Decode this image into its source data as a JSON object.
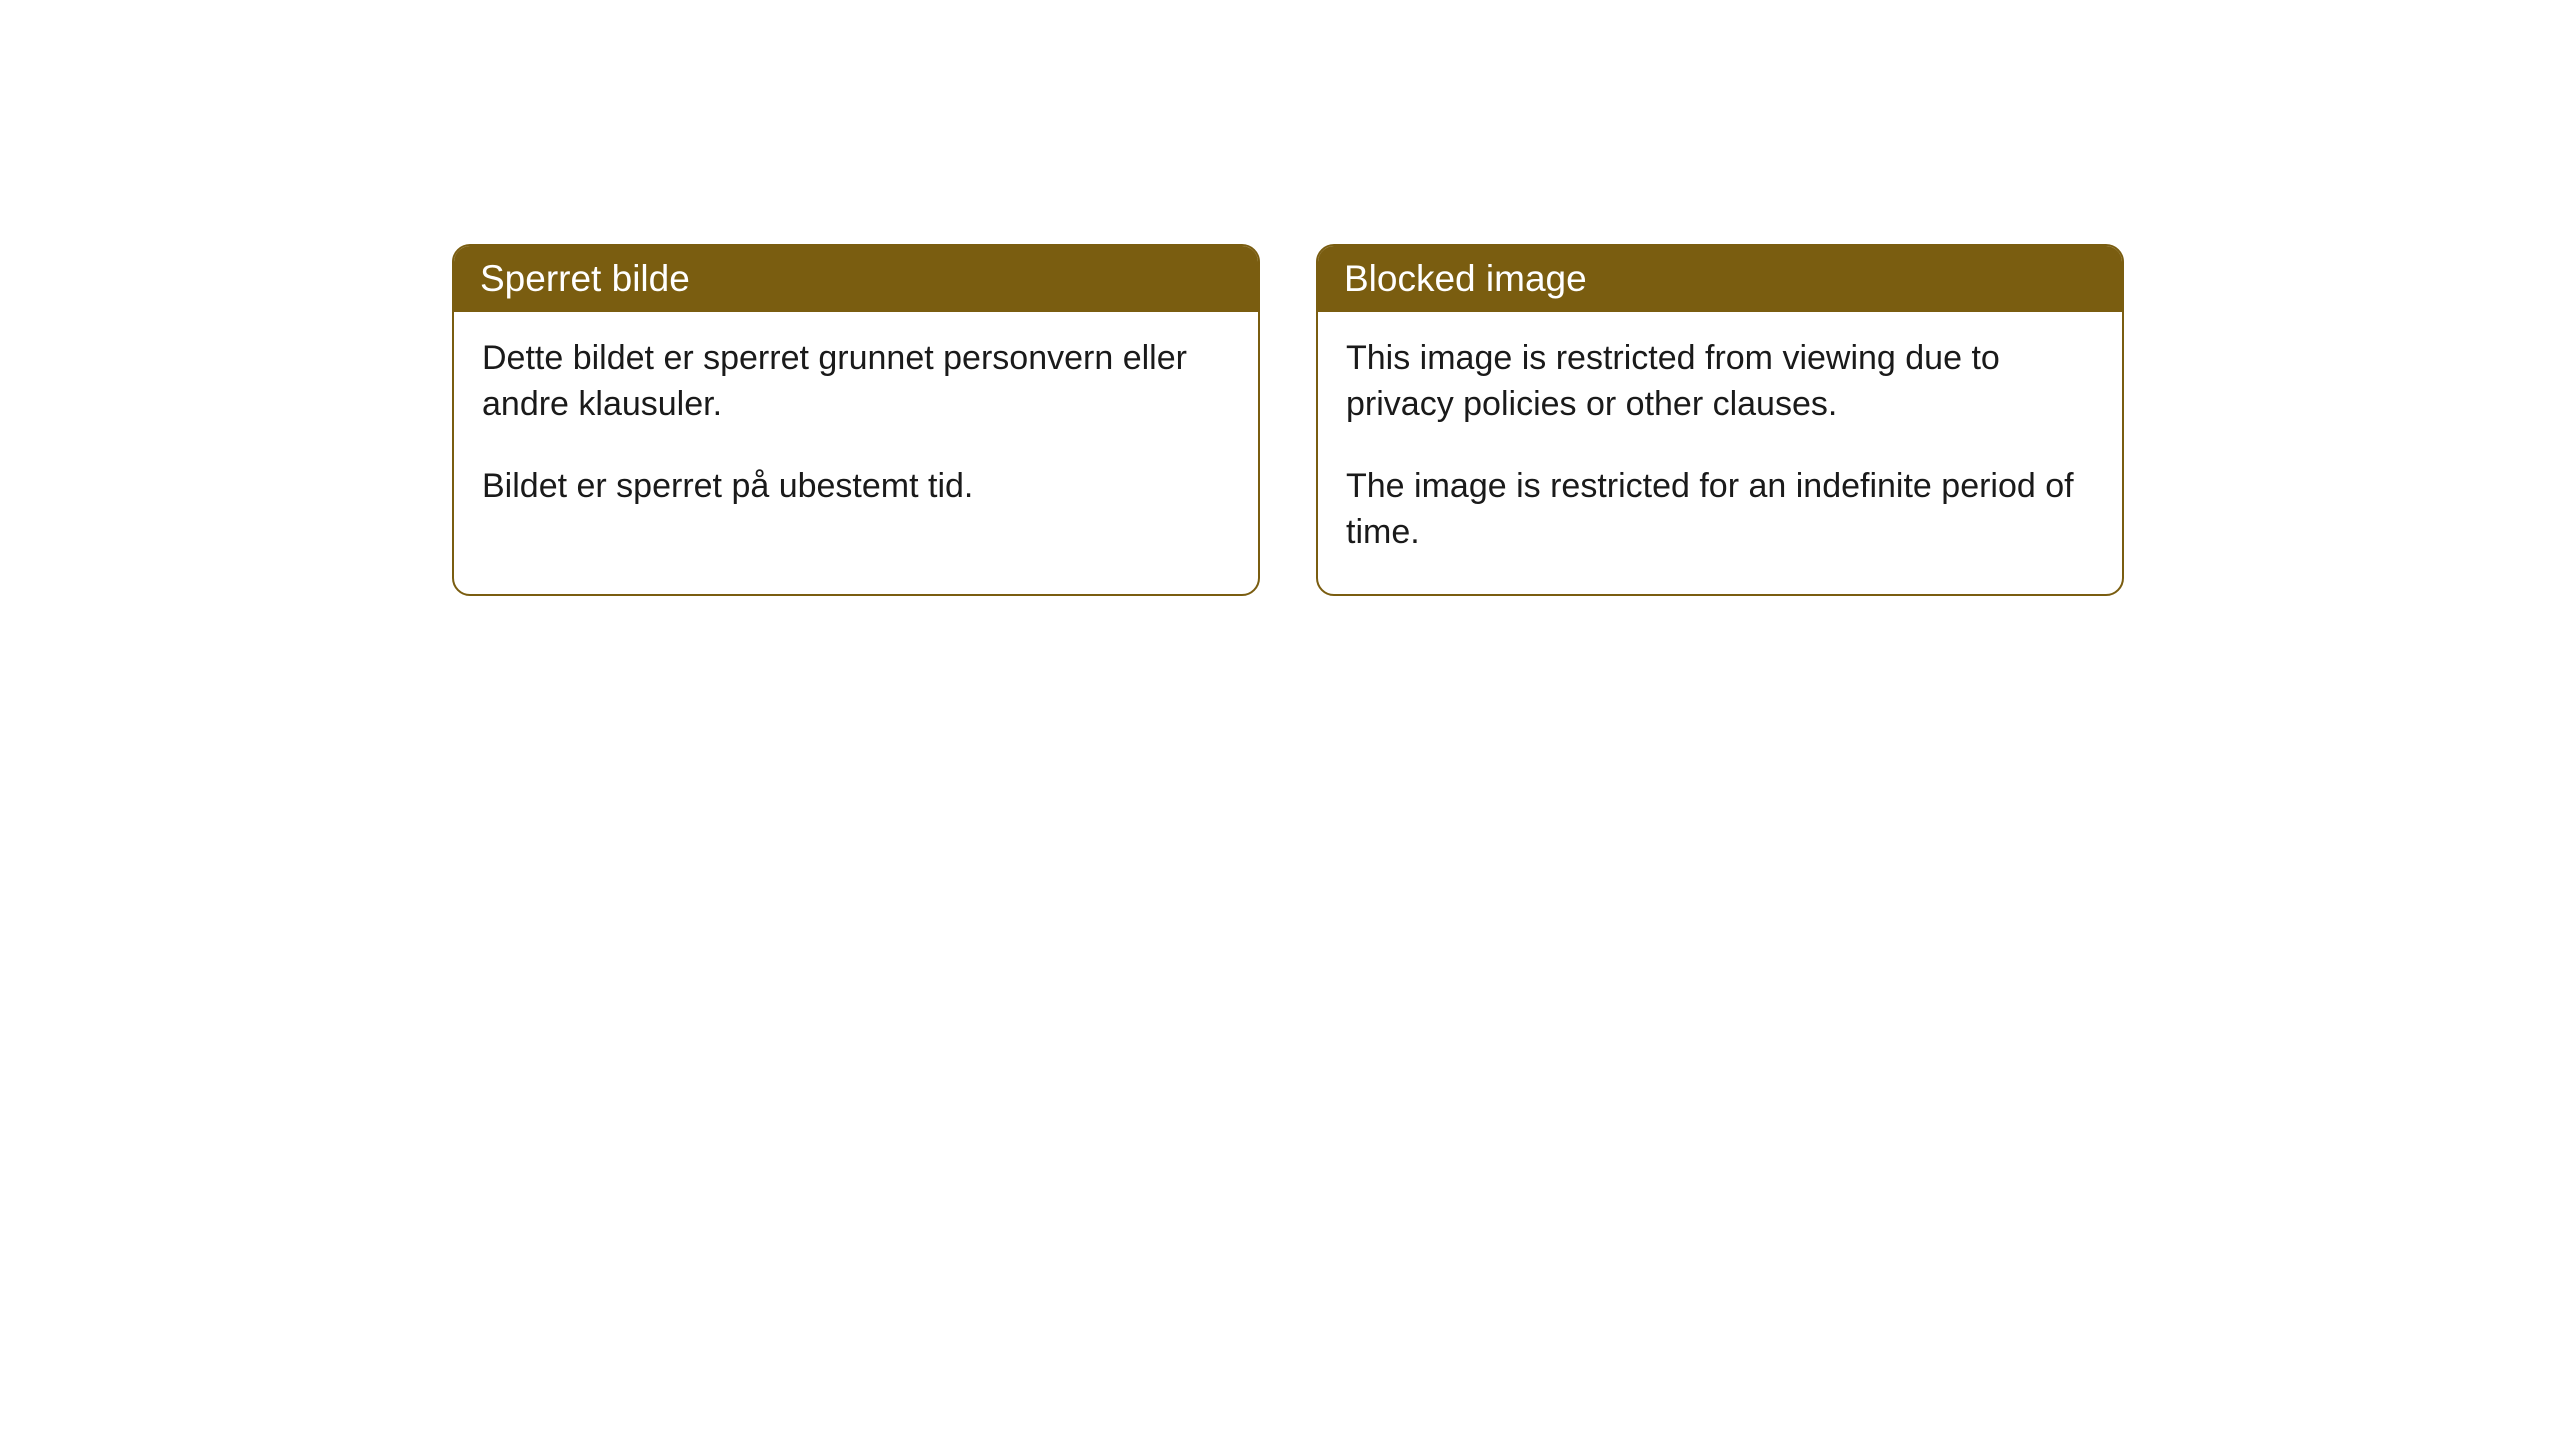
{
  "cards": [
    {
      "title": "Sperret bilde",
      "paragraph1": "Dette bildet er sperret grunnet personvern eller andre klausuler.",
      "paragraph2": "Bildet er sperret på ubestemt tid."
    },
    {
      "title": "Blocked image",
      "paragraph1": "This image is restricted from viewing due to privacy policies or other clauses.",
      "paragraph2": "The image is restricted for an indefinite period of time."
    }
  ],
  "styling": {
    "header_background": "#7a5d10",
    "header_text_color": "#ffffff",
    "border_color": "#7a5d10",
    "body_background": "#ffffff",
    "body_text_color": "#1a1a1a",
    "border_radius": 18,
    "title_fontsize": 37,
    "body_fontsize": 34
  }
}
